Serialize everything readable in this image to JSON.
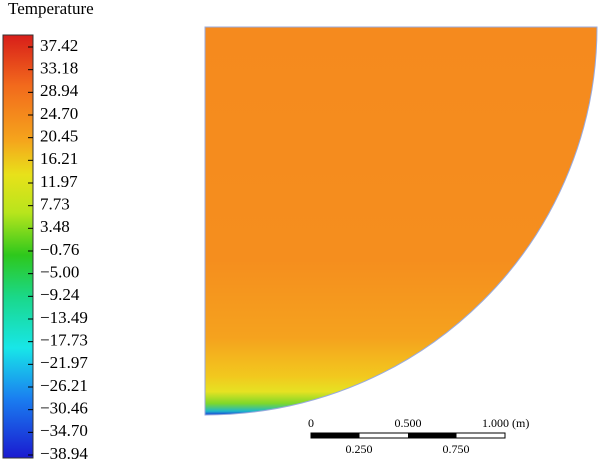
{
  "legend": {
    "title": "Temperature",
    "labels": [
      "37.42",
      "33.18",
      "28.94",
      "24.70",
      "20.45",
      "16.21",
      "11.97",
      "7.73",
      "3.48",
      "−0.76",
      "−5.00",
      "−9.24",
      "−13.49",
      "−17.73",
      "−21.97",
      "−26.21",
      "−30.46",
      "−34.70",
      "−38.94"
    ]
  },
  "scale_bar": {
    "top_labels": [
      "0",
      "0.500",
      "1.000 (m)"
    ],
    "bottom_labels": [
      "0.250",
      "0.750"
    ]
  }
}
